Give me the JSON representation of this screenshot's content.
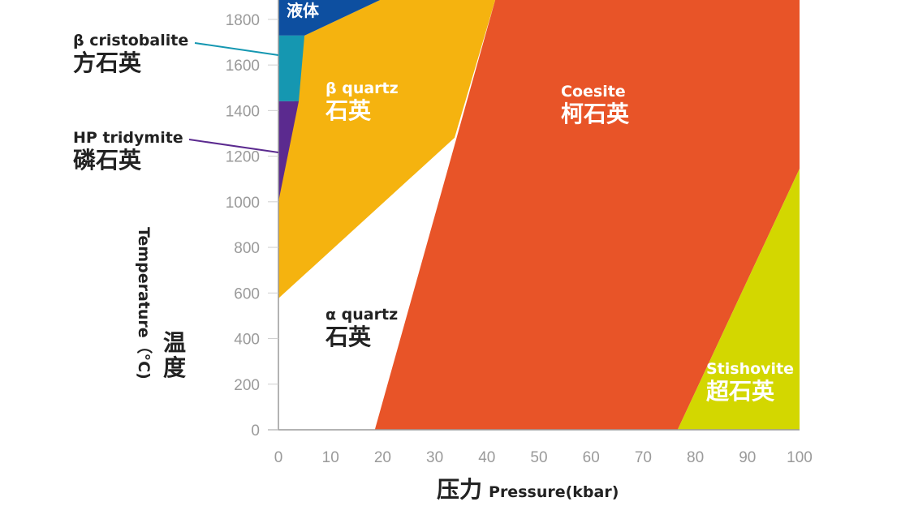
{
  "chart_data": {
    "type": "area",
    "title": "",
    "xlabel_zh": "压力",
    "xlabel_en": "Pressure(kbar)",
    "ylabel_zh": "温度",
    "ylabel_en": "Temperature（°C)",
    "xlim": [
      0,
      100
    ],
    "ylim": [
      0,
      1885
    ],
    "xticks": [
      0,
      10,
      20,
      30,
      40,
      50,
      60,
      70,
      80,
      90,
      100
    ],
    "yticks": [
      0,
      200,
      400,
      600,
      800,
      1000,
      1200,
      1400,
      1600,
      1800
    ],
    "grid": false,
    "regions": [
      {
        "id": "coesite",
        "color": "#e85428",
        "points": [
          [
            41.6,
            1885
          ],
          [
            100,
            1885
          ],
          [
            100,
            1145
          ],
          [
            76.6,
            0
          ],
          [
            18.5,
            0
          ]
        ]
      },
      {
        "id": "stishovite",
        "color": "#d3d700",
        "points": [
          [
            100,
            1145
          ],
          [
            100,
            0
          ],
          [
            76.6,
            0
          ]
        ]
      },
      {
        "id": "beta-quartz",
        "color": "#f5b30f",
        "points": [
          [
            5,
            1729
          ],
          [
            19.5,
            1885
          ],
          [
            41.6,
            1885
          ],
          [
            33.8,
            1281
          ],
          [
            0,
            576
          ],
          [
            0,
            1000
          ]
        ]
      },
      {
        "id": "liquid",
        "color": "#0d4fa0",
        "points": [
          [
            0,
            1885
          ],
          [
            19.5,
            1885
          ],
          [
            5,
            1729
          ],
          [
            0,
            1729
          ]
        ]
      },
      {
        "id": "beta-cristobalite",
        "color": "#1597b1",
        "points": [
          [
            0,
            1729
          ],
          [
            5,
            1729
          ],
          [
            3.9,
            1441
          ],
          [
            0,
            1441
          ]
        ]
      },
      {
        "id": "hp-tridymite",
        "color": "#5b2a8f",
        "points": [
          [
            0,
            1441
          ],
          [
            3.9,
            1441
          ],
          [
            0,
            1000
          ]
        ]
      }
    ]
  },
  "labels": {
    "liquid_zh": "液体",
    "beta_quartz_en": "β quartz",
    "beta_quartz_zh": "石英",
    "coesite_en": "Coesite",
    "coesite_zh": "柯石英",
    "alpha_quartz_en": "α quartz",
    "alpha_quartz_zh": "石英",
    "stishovite_en": "Stishovite",
    "stishovite_zh": "超石英",
    "cristobalite_en": "β cristobalite",
    "cristobalite_zh": "方石英",
    "tridymite_en": "HP tridymite",
    "tridymite_zh": "磷石英"
  },
  "colors": {
    "axis": "#9a9a9a",
    "tick_text": "#9a9a9a",
    "teal_leader": "#1597b1",
    "purple_leader": "#5b2a8f"
  }
}
